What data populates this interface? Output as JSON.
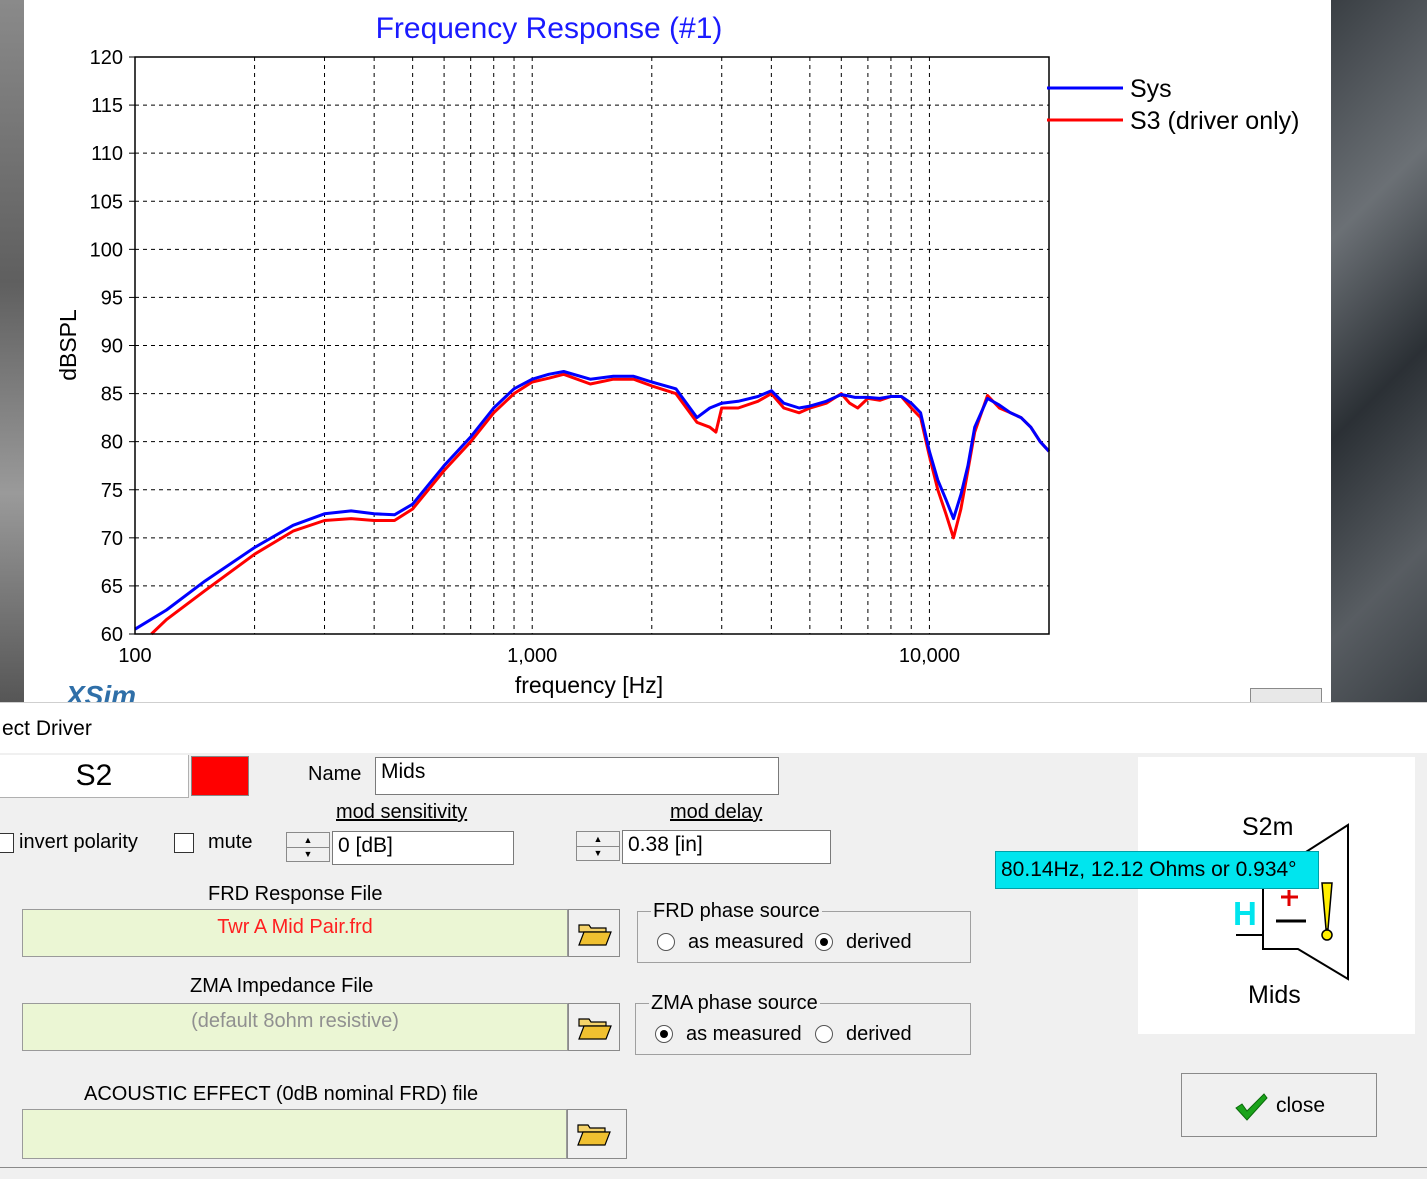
{
  "chart_window": {
    "logo_text": "XSim"
  },
  "chart_data": {
    "type": "line",
    "title": "Frequency Response (#1)",
    "xlabel": "frequency [Hz]",
    "ylabel": "dBSPL",
    "x_scale": "log",
    "xlim": [
      100,
      20000
    ],
    "ylim": [
      60,
      120
    ],
    "x_tick_labels": [
      "100",
      "1,000",
      "10,000"
    ],
    "x_tick_values": [
      100,
      1000,
      10000
    ],
    "y_ticks": [
      60,
      65,
      70,
      75,
      80,
      85,
      90,
      95,
      100,
      105,
      110,
      115,
      120
    ],
    "grid": true,
    "legend_position": "top-right",
    "series": [
      {
        "name": "Sys",
        "color": "#0000ff",
        "x": [
          100,
          120,
          150,
          200,
          250,
          300,
          350,
          400,
          450,
          500,
          600,
          700,
          800,
          900,
          1000,
          1100,
          1200,
          1400,
          1600,
          1800,
          2000,
          2300,
          2600,
          2800,
          3000,
          3300,
          3700,
          4000,
          4300,
          4700,
          5000,
          5500,
          6000,
          6500,
          7000,
          7500,
          8000,
          8500,
          9000,
          9500,
          10000,
          10500,
          11000,
          11500,
          12000,
          12500,
          13000,
          14000,
          15000,
          16000,
          17000,
          18000,
          19000,
          20000
        ],
        "y": [
          60.5,
          62.5,
          65.5,
          69.0,
          71.3,
          72.5,
          72.8,
          72.5,
          72.4,
          73.5,
          77.5,
          80.5,
          83.5,
          85.5,
          86.5,
          87.0,
          87.3,
          86.5,
          86.8,
          86.8,
          86.2,
          85.5,
          82.5,
          83.5,
          84.0,
          84.2,
          84.7,
          85.3,
          84.0,
          83.5,
          83.7,
          84.2,
          84.9,
          84.6,
          84.6,
          84.5,
          84.7,
          84.7,
          84.0,
          83.0,
          79.0,
          76.0,
          74.0,
          72.0,
          74.5,
          77.5,
          81.5,
          84.5,
          83.8,
          83.0,
          82.5,
          81.5,
          80.0,
          79.0
        ]
      },
      {
        "name": "S3 (driver only)",
        "color": "#ff0000",
        "x": [
          110,
          120,
          150,
          200,
          250,
          300,
          350,
          400,
          450,
          500,
          600,
          700,
          800,
          900,
          1000,
          1100,
          1200,
          1400,
          1600,
          1800,
          2000,
          2300,
          2600,
          2800,
          2900,
          3000,
          3300,
          3700,
          4000,
          4300,
          4700,
          5000,
          5500,
          6000,
          6300,
          6600,
          7000,
          7500,
          8000,
          8500,
          9000,
          9500,
          10000,
          10500,
          11000,
          11500,
          12000,
          12500,
          13000,
          14000,
          15000,
          16000,
          17000,
          18000,
          19000,
          20000
        ],
        "y": [
          60.0,
          61.5,
          64.5,
          68.3,
          70.7,
          71.8,
          72.0,
          71.8,
          71.8,
          73.0,
          77.0,
          80.0,
          83.0,
          85.0,
          86.2,
          86.6,
          87.0,
          86.0,
          86.5,
          86.5,
          85.8,
          85.0,
          82.0,
          81.5,
          81.0,
          83.5,
          83.5,
          84.2,
          85.0,
          83.5,
          83.0,
          83.5,
          84.0,
          85.0,
          84.0,
          83.5,
          84.5,
          84.3,
          84.7,
          84.7,
          83.5,
          82.5,
          78.5,
          75.0,
          72.5,
          70.0,
          73.0,
          77.0,
          81.0,
          84.8,
          83.5,
          83.0,
          82.5,
          81.5,
          80.0,
          79.0
        ]
      }
    ]
  },
  "dialog": {
    "title": "ect Driver",
    "driver_id": "S2",
    "driver_color": "#ff0000",
    "name_label": "Name",
    "name_value": "Mids",
    "invert_polarity_label": "invert polarity",
    "mute_label": "mute",
    "mod_sensitivity_label": "mod sensitivity",
    "mod_sensitivity_value": "0 [dB]",
    "mod_delay_label": "mod delay",
    "mod_delay_value": "0.38 [in]",
    "frd_file_label": "FRD Response File",
    "frd_file_value": "Twr A Mid Pair.frd",
    "zma_file_label": "ZMA Impedance File",
    "zma_file_value": "(default 8ohm resistive)",
    "acoustic_file_label": "ACOUSTIC EFFECT (0dB nominal FRD) file",
    "acoustic_file_value": "",
    "frd_phase": {
      "title": "FRD phase source",
      "option_measured": "as measured",
      "option_derived": "derived",
      "selected": "derived"
    },
    "zma_phase": {
      "title": "ZMA phase source",
      "option_measured": "as measured",
      "option_derived": "derived",
      "selected": "as measured"
    },
    "preview": {
      "driver_label": "S2m",
      "name_label": "Mids",
      "letter": "H"
    },
    "tooltip": "80.14Hz, 12.12 Ohms or 0.934°",
    "close_label": "close"
  }
}
